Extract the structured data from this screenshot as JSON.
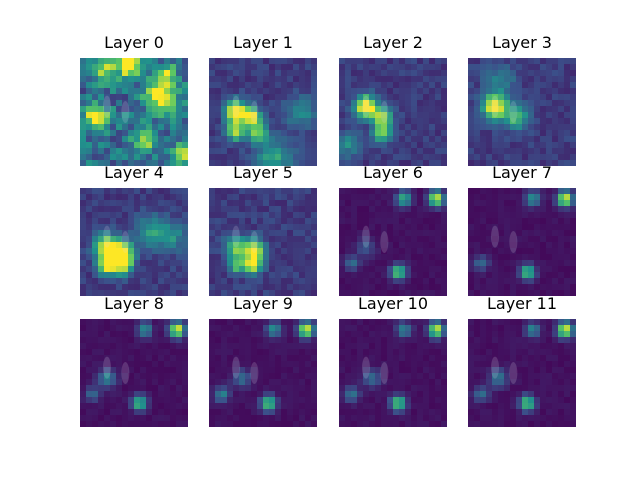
{
  "figure": {
    "panels": [
      {
        "title": "Layer 0",
        "style": "noisy",
        "blobs": [
          [
            0.45,
            0.05,
            0.08,
            0.9
          ],
          [
            0.15,
            0.55,
            0.08,
            0.7
          ],
          [
            0.75,
            0.35,
            0.1,
            0.8
          ],
          [
            0.95,
            0.9,
            0.06,
            0.7
          ],
          [
            0.6,
            0.75,
            0.08,
            0.5
          ],
          [
            0.2,
            0.1,
            0.08,
            0.5
          ],
          [
            0.8,
            0.15,
            0.06,
            0.5
          ]
        ]
      },
      {
        "title": "Layer 1",
        "style": "people",
        "blobs": [
          [
            0.25,
            0.5,
            0.07,
            1.0
          ],
          [
            0.4,
            0.55,
            0.06,
            0.8
          ],
          [
            0.45,
            0.7,
            0.06,
            0.6
          ],
          [
            0.25,
            0.68,
            0.06,
            0.7
          ],
          [
            0.6,
            0.92,
            0.12,
            0.4
          ],
          [
            0.85,
            0.5,
            0.1,
            0.3
          ]
        ]
      },
      {
        "title": "Layer 2",
        "style": "people",
        "blobs": [
          [
            0.25,
            0.45,
            0.07,
            1.0
          ],
          [
            0.4,
            0.55,
            0.06,
            0.7
          ],
          [
            0.4,
            0.7,
            0.06,
            0.6
          ],
          [
            0.1,
            0.8,
            0.08,
            0.3
          ]
        ]
      },
      {
        "title": "Layer 3",
        "style": "people",
        "blobs": [
          [
            0.25,
            0.45,
            0.08,
            0.9
          ],
          [
            0.45,
            0.55,
            0.08,
            0.5
          ],
          [
            0.3,
            0.2,
            0.1,
            0.25
          ]
        ]
      },
      {
        "title": "Layer 4",
        "style": "people",
        "blobs": [
          [
            0.25,
            0.55,
            0.08,
            0.9
          ],
          [
            0.4,
            0.6,
            0.07,
            0.8
          ],
          [
            0.25,
            0.72,
            0.06,
            0.85
          ],
          [
            0.4,
            0.72,
            0.06,
            0.75
          ],
          [
            0.65,
            0.4,
            0.1,
            0.35
          ],
          [
            0.85,
            0.45,
            0.1,
            0.3
          ]
        ]
      },
      {
        "title": "Layer 5",
        "style": "people",
        "blobs": [
          [
            0.25,
            0.55,
            0.07,
            0.6
          ],
          [
            0.42,
            0.58,
            0.07,
            0.8
          ],
          [
            0.4,
            0.72,
            0.06,
            0.7
          ],
          [
            0.25,
            0.72,
            0.05,
            0.5
          ]
        ]
      },
      {
        "title": "Layer 6",
        "style": "spots",
        "blobs": [
          [
            0.6,
            0.1,
            0.05,
            0.55
          ],
          [
            0.9,
            0.1,
            0.05,
            0.9
          ],
          [
            0.55,
            0.78,
            0.05,
            0.7
          ],
          [
            0.12,
            0.7,
            0.05,
            0.3
          ],
          [
            0.25,
            0.55,
            0.06,
            0.25
          ]
        ]
      },
      {
        "title": "Layer 7",
        "style": "spots",
        "blobs": [
          [
            0.6,
            0.1,
            0.05,
            0.45
          ],
          [
            0.9,
            0.1,
            0.05,
            0.95
          ],
          [
            0.55,
            0.78,
            0.05,
            0.65
          ],
          [
            0.12,
            0.7,
            0.05,
            0.3
          ]
        ]
      },
      {
        "title": "Layer 8",
        "style": "spots",
        "blobs": [
          [
            0.6,
            0.1,
            0.05,
            0.45
          ],
          [
            0.9,
            0.1,
            0.05,
            0.95
          ],
          [
            0.55,
            0.78,
            0.05,
            0.65
          ],
          [
            0.12,
            0.7,
            0.05,
            0.3
          ],
          [
            0.25,
            0.55,
            0.06,
            0.4
          ]
        ]
      },
      {
        "title": "Layer 9",
        "style": "spots",
        "blobs": [
          [
            0.6,
            0.1,
            0.05,
            0.45
          ],
          [
            0.9,
            0.1,
            0.05,
            0.95
          ],
          [
            0.55,
            0.78,
            0.05,
            0.7
          ],
          [
            0.12,
            0.7,
            0.05,
            0.4
          ],
          [
            0.3,
            0.55,
            0.06,
            0.3
          ]
        ]
      },
      {
        "title": "Layer 10",
        "style": "spots",
        "blobs": [
          [
            0.6,
            0.1,
            0.05,
            0.4
          ],
          [
            0.9,
            0.1,
            0.05,
            0.9
          ],
          [
            0.55,
            0.78,
            0.05,
            0.7
          ],
          [
            0.12,
            0.7,
            0.05,
            0.35
          ],
          [
            0.3,
            0.55,
            0.06,
            0.3
          ]
        ]
      },
      {
        "title": "Layer 11",
        "style": "spots",
        "blobs": [
          [
            0.6,
            0.1,
            0.05,
            0.4
          ],
          [
            0.9,
            0.1,
            0.05,
            0.95
          ],
          [
            0.55,
            0.78,
            0.05,
            0.7
          ],
          [
            0.12,
            0.7,
            0.05,
            0.3
          ],
          [
            0.28,
            0.55,
            0.06,
            0.35
          ]
        ]
      }
    ],
    "colors": {
      "low": "#440154",
      "mid": "#21918c",
      "high": "#fde725"
    }
  }
}
